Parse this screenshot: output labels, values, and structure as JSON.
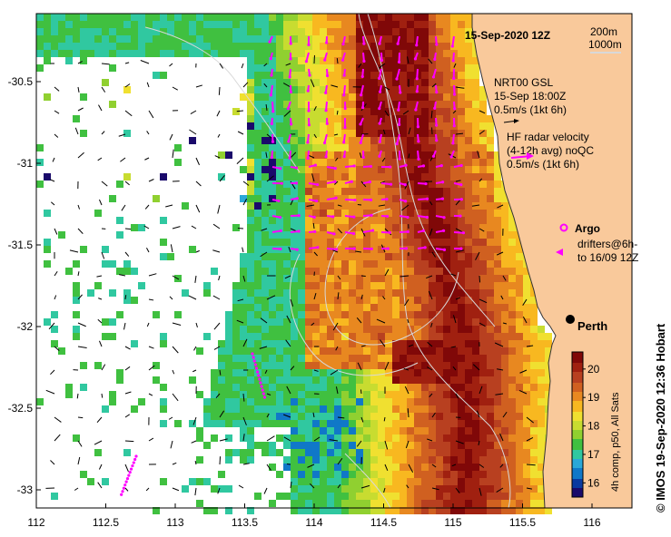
{
  "title": "15-Sep-2020 12Z",
  "isobath_legend": {
    "line1": "200m",
    "line2": "1000m"
  },
  "gsl": {
    "line1": "NRT00 GSL",
    "line2": "15-Sep 18:00Z",
    "line3": "0.5m/s (1kt 6h)"
  },
  "radar": {
    "line1": "HF radar velocity",
    "line2": "(4-12h avg) noQC",
    "line3": "0.5m/s (1kt 6h)"
  },
  "argo": {
    "label": "Argo"
  },
  "drifters": {
    "line1": "drifters@6h-",
    "line2": "to 16/09 12Z"
  },
  "city": {
    "name": "Perth"
  },
  "colorbar": {
    "ticks": [
      "16",
      "17",
      "18",
      "19",
      "20"
    ],
    "label": "4h comp, p50, All Sats",
    "min": 15.5,
    "max": 20.6
  },
  "credit": "©  IMOS 19-Sep-2020 12:36 Hobart",
  "axes": {
    "x_ticks": [
      "112",
      "112.5",
      "113",
      "113.5",
      "114",
      "114.5",
      "115",
      "115.5",
      "116"
    ],
    "y_ticks": [
      "-30.5",
      "-31",
      "-31.5",
      "-32",
      "-32.5",
      "-33"
    ],
    "lon_range": [
      112,
      116.3
    ],
    "lat_range": [
      -33.1,
      -30.1
    ]
  },
  "colors": {
    "land": "#f9c99b",
    "gsl_arrow": "#000000",
    "radar_arrow": "#ff00ff",
    "coast": "#333333"
  }
}
